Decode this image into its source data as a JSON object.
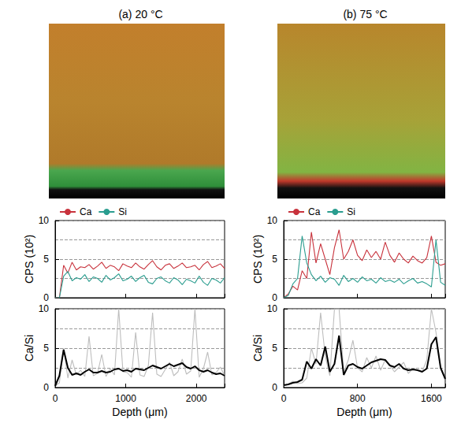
{
  "chart_data": [
    {
      "type": "line",
      "title": "(a) 20 °C",
      "ylabel": "CPS (10²)",
      "x": [
        0,
        60,
        120,
        180,
        240,
        300,
        360,
        420,
        480,
        540,
        600,
        660,
        720,
        780,
        840,
        900,
        960,
        1020,
        1080,
        1140,
        1200,
        1260,
        1320,
        1380,
        1440,
        1500,
        1560,
        1620,
        1680,
        1740,
        1800,
        1860,
        1920,
        1980,
        2040,
        2100,
        2160,
        2220,
        2280,
        2340,
        2400
      ],
      "series": [
        {
          "name": "Ca",
          "color": "#c8323c",
          "values": [
            0,
            0,
            4.2,
            3.2,
            4.6,
            3.6,
            4.0,
            3.9,
            4.3,
            3.7,
            4.1,
            4.6,
            3.8,
            4.2,
            4.0,
            3.5,
            4.4,
            4.1,
            3.9,
            4.5,
            4.0,
            3.7,
            4.3,
            4.8,
            4.0,
            3.6,
            4.2,
            4.4,
            3.8,
            4.1,
            4.5,
            3.9,
            4.0,
            4.2,
            3.6,
            4.3,
            4.7,
            3.9,
            4.1,
            4.4,
            3.8
          ]
        },
        {
          "name": "Si",
          "color": "#2a9d8f",
          "values": [
            0,
            0,
            2.8,
            3.4,
            2.2,
            2.6,
            2.4,
            3.0,
            2.1,
            2.7,
            2.5,
            2.0,
            2.9,
            2.3,
            2.6,
            3.1,
            2.2,
            2.4,
            2.8,
            2.1,
            2.6,
            2.9,
            2.0,
            1.8,
            2.5,
            2.7,
            2.2,
            1.9,
            2.6,
            2.3,
            1.7,
            2.4,
            2.2,
            1.9,
            2.8,
            2.0,
            1.6,
            2.5,
            2.3,
            1.9,
            2.6
          ]
        }
      ],
      "xlim": [
        0,
        2400
      ],
      "xticks": [
        0,
        1000,
        2000
      ],
      "ylim": [
        0,
        10
      ],
      "yticks": [
        0,
        5,
        10
      ],
      "grid": true,
      "legend": "top",
      "tick_labels": "y"
    },
    {
      "type": "line",
      "xlabel": "Depth (μm)",
      "ylabel": "Ca/Si",
      "x": [
        0,
        60,
        120,
        180,
        240,
        300,
        360,
        420,
        480,
        540,
        600,
        660,
        720,
        780,
        840,
        900,
        960,
        1020,
        1080,
        1140,
        1200,
        1260,
        1320,
        1380,
        1440,
        1500,
        1560,
        1620,
        1680,
        1740,
        1800,
        1860,
        1920,
        1980,
        2040,
        2100,
        2160,
        2220,
        2280,
        2340,
        2400
      ],
      "series": [
        {
          "color": "#bdbdbd",
          "values": [
            0.2,
            0.6,
            5.0,
            1.2,
            3.5,
            1.6,
            2.2,
            1.4,
            6.5,
            1.5,
            1.8,
            4.2,
            1.4,
            2.4,
            1.6,
            10,
            2.0,
            1.9,
            1.3,
            7.0,
            1.6,
            1.4,
            2.8,
            9.5,
            1.7,
            1.4,
            2.3,
            3.2,
            1.5,
            2.0,
            3.6,
            1.7,
            2.1,
            10,
            1.3,
            2.4,
            4.5,
            1.6,
            1.9,
            2.6,
            1.5
          ]
        },
        {
          "color": "#000000",
          "values": [
            0.2,
            1.5,
            4.8,
            2.5,
            1.6,
            1.8,
            1.6,
            2.0,
            2.3,
            1.9,
            1.9,
            2.1,
            1.9,
            2.0,
            2.3,
            2.4,
            2.1,
            2.2,
            2.0,
            2.4,
            2.3,
            2.2,
            2.5,
            2.8,
            2.6,
            2.4,
            2.7,
            3.0,
            2.7,
            2.9,
            3.1,
            2.6,
            2.4,
            2.7,
            2.2,
            2.0,
            2.2,
            1.9,
            1.7,
            1.8,
            1.5
          ]
        }
      ],
      "xlim": [
        0,
        2400
      ],
      "xticks": [
        0,
        1000,
        2000
      ],
      "ylim": [
        0,
        10
      ],
      "yticks": [
        0,
        5,
        10
      ],
      "grid": true
    },
    {
      "type": "line",
      "title": "(b) 75 °C",
      "ylabel": "CPS (10²)",
      "x": [
        0,
        50,
        100,
        150,
        200,
        250,
        300,
        350,
        400,
        450,
        500,
        550,
        600,
        650,
        700,
        750,
        800,
        850,
        900,
        950,
        1000,
        1050,
        1100,
        1150,
        1200,
        1250,
        1300,
        1350,
        1400,
        1450,
        1500,
        1550,
        1600,
        1650,
        1700,
        1750
      ],
      "series": [
        {
          "name": "Ca",
          "color": "#c8323c",
          "values": [
            0,
            0.5,
            1.5,
            1.0,
            3.5,
            2.5,
            8.5,
            4.5,
            7.0,
            5.0,
            3.0,
            6.5,
            8.8,
            5.0,
            6.0,
            7.5,
            5.5,
            4.8,
            6.2,
            5.2,
            6.0,
            5.0,
            7.2,
            5.5,
            4.6,
            5.8,
            5.0,
            4.5,
            5.4,
            4.8,
            4.5,
            5.2,
            8.0,
            4.6,
            4.2,
            4.4
          ]
        },
        {
          "name": "Si",
          "color": "#2a9d8f",
          "values": [
            0,
            0.3,
            1.8,
            2.5,
            8.0,
            4.5,
            3.0,
            2.2,
            2.8,
            2.0,
            2.6,
            2.4,
            1.6,
            2.9,
            2.1,
            2.5,
            2.0,
            2.7,
            2.2,
            2.4,
            1.9,
            2.6,
            2.1,
            2.3,
            2.0,
            2.4,
            1.8,
            2.2,
            2.5,
            1.9,
            2.1,
            1.8,
            1.4,
            7.5,
            2.0,
            1.6
          ]
        }
      ],
      "xlim": [
        0,
        1750
      ],
      "xticks": [
        0,
        800,
        1600
      ],
      "ylim": [
        0,
        10
      ],
      "yticks": [
        0,
        5,
        10
      ],
      "grid": true,
      "legend": "top",
      "tick_labels": "y"
    },
    {
      "type": "line",
      "xlabel": "Depth (μm)",
      "ylabel": "Ca/Si",
      "x": [
        0,
        50,
        100,
        150,
        200,
        250,
        300,
        350,
        400,
        450,
        500,
        550,
        600,
        650,
        700,
        750,
        800,
        850,
        900,
        950,
        1000,
        1050,
        1100,
        1150,
        1200,
        1250,
        1300,
        1350,
        1400,
        1450,
        1500,
        1550,
        1600,
        1650,
        1700,
        1750
      ],
      "series": [
        {
          "color": "#bdbdbd",
          "values": [
            0.2,
            0.4,
            0.8,
            0.5,
            0.6,
            1.2,
            5.0,
            3.0,
            9.5,
            4.0,
            1.5,
            10,
            10,
            2.0,
            3.5,
            6.0,
            2.5,
            2.0,
            3.8,
            2.5,
            4.0,
            2.2,
            3.5,
            2.8,
            2.0,
            2.6,
            3.2,
            1.8,
            2.4,
            2.2,
            2.0,
            3.5,
            10,
            7.0,
            2.5,
            1.2
          ]
        },
        {
          "color": "#000000",
          "values": [
            0.3,
            0.4,
            0.6,
            0.7,
            1.0,
            3.3,
            2.4,
            3.6,
            2.8,
            5.2,
            2.0,
            3.0,
            6.6,
            1.6,
            2.8,
            3.0,
            2.6,
            2.4,
            2.8,
            3.2,
            3.4,
            3.6,
            3.5,
            2.8,
            2.6,
            3.0,
            2.4,
            2.2,
            2.3,
            2.2,
            2.0,
            2.4,
            5.5,
            6.4,
            2.5,
            1.1
          ]
        }
      ],
      "xlim": [
        0,
        1750
      ],
      "xticks": [
        0,
        800,
        1600
      ],
      "ylim": [
        0,
        10
      ],
      "yticks": [
        0,
        5,
        10
      ],
      "grid": true
    }
  ]
}
